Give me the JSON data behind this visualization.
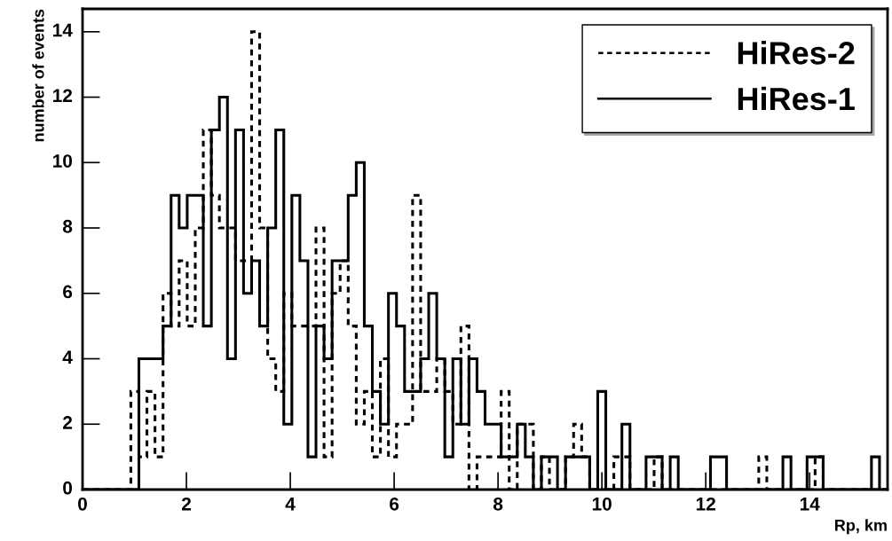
{
  "chart_data": {
    "type": "histogram",
    "xlabel": "Rp, km",
    "ylabel": "number of events",
    "bins": [
      0,
      0.155,
      0.31,
      0.465,
      0.62,
      0.775,
      0.93,
      1.085,
      1.24,
      1.395,
      1.55,
      1.705,
      1.86,
      2.015,
      2.17,
      2.325,
      2.48,
      2.635,
      2.79,
      2.945,
      3.1,
      3.255,
      3.41,
      3.565,
      3.72,
      3.875,
      4.03,
      4.185,
      4.34,
      4.495,
      4.65,
      4.805,
      4.96,
      5.115,
      5.27,
      5.425,
      5.58,
      5.735,
      5.89,
      6.045,
      6.2,
      6.355,
      6.51,
      6.665,
      6.82,
      6.975,
      7.13,
      7.285,
      7.44,
      7.595,
      7.75,
      7.905,
      8.06,
      8.215,
      8.37,
      8.525,
      8.68,
      8.835,
      8.99,
      9.145,
      9.3,
      9.455,
      9.61,
      9.765,
      9.92,
      10.075,
      10.23,
      10.385,
      10.54,
      10.695,
      10.85,
      11.005,
      11.16,
      11.315,
      11.47,
      11.625,
      11.78,
      11.935,
      12.09,
      12.245,
      12.4,
      12.555,
      12.71,
      12.865,
      13.02,
      13.175,
      13.33,
      13.485,
      13.64,
      13.795,
      13.95,
      14.105,
      14.26,
      14.415,
      14.57,
      14.725,
      14.88,
      15.035,
      15.19,
      15.345,
      15.5
    ],
    "series": [
      {
        "name": "HiRes-2",
        "color": "#000000",
        "line_style": "dashed",
        "values": [
          0,
          0,
          0,
          0,
          0,
          0,
          3,
          1,
          3,
          1,
          6,
          5,
          7,
          5,
          8,
          11,
          9,
          8,
          8,
          7,
          7,
          14,
          8,
          4,
          3,
          6,
          5,
          5,
          5,
          8,
          1,
          6,
          7,
          5,
          2,
          3,
          1,
          4,
          1,
          2,
          2,
          9,
          3,
          3,
          4,
          3,
          2,
          5,
          0,
          1,
          1,
          1,
          3,
          0,
          2,
          2,
          0,
          1,
          0,
          0,
          1,
          2,
          1,
          0,
          0,
          0,
          1,
          1,
          0,
          0,
          0,
          1,
          0,
          0,
          0,
          0,
          0,
          0,
          0,
          0,
          0,
          0,
          0,
          0,
          1,
          0,
          0,
          0,
          0,
          0,
          0,
          1,
          0,
          0,
          0,
          0,
          0,
          0,
          0,
          0
        ]
      },
      {
        "name": "HiRes-1",
        "color": "#000000",
        "line_style": "solid",
        "values": [
          0,
          0,
          0,
          0,
          0,
          0,
          0,
          4,
          4,
          4,
          5,
          9,
          8,
          9,
          9,
          5,
          11,
          12,
          4,
          11,
          6,
          7,
          5,
          8,
          11,
          2,
          9,
          7,
          1,
          5,
          4,
          7,
          7,
          9,
          10,
          5,
          3,
          2,
          6,
          5,
          3,
          3,
          4,
          6,
          4,
          1,
          4,
          2,
          4,
          3,
          2,
          2,
          1,
          1,
          2,
          1,
          0,
          1,
          1,
          0,
          1,
          1,
          1,
          0,
          3,
          0,
          0,
          2,
          0,
          0,
          1,
          1,
          0,
          1,
          0,
          0,
          0,
          0,
          1,
          1,
          0,
          0,
          0,
          0,
          0,
          0,
          0,
          1,
          0,
          0,
          1,
          1,
          0,
          0,
          0,
          0,
          0,
          0,
          1,
          0
        ]
      }
    ],
    "xlim": [
      0,
      15.5
    ],
    "ylim": [
      0,
      14.7
    ],
    "xticks": [
      0,
      2,
      4,
      6,
      8,
      10,
      12,
      14
    ],
    "yticks": [
      0,
      2,
      4,
      6,
      8,
      10,
      12,
      14
    ],
    "grid": false,
    "legend": "top right"
  }
}
